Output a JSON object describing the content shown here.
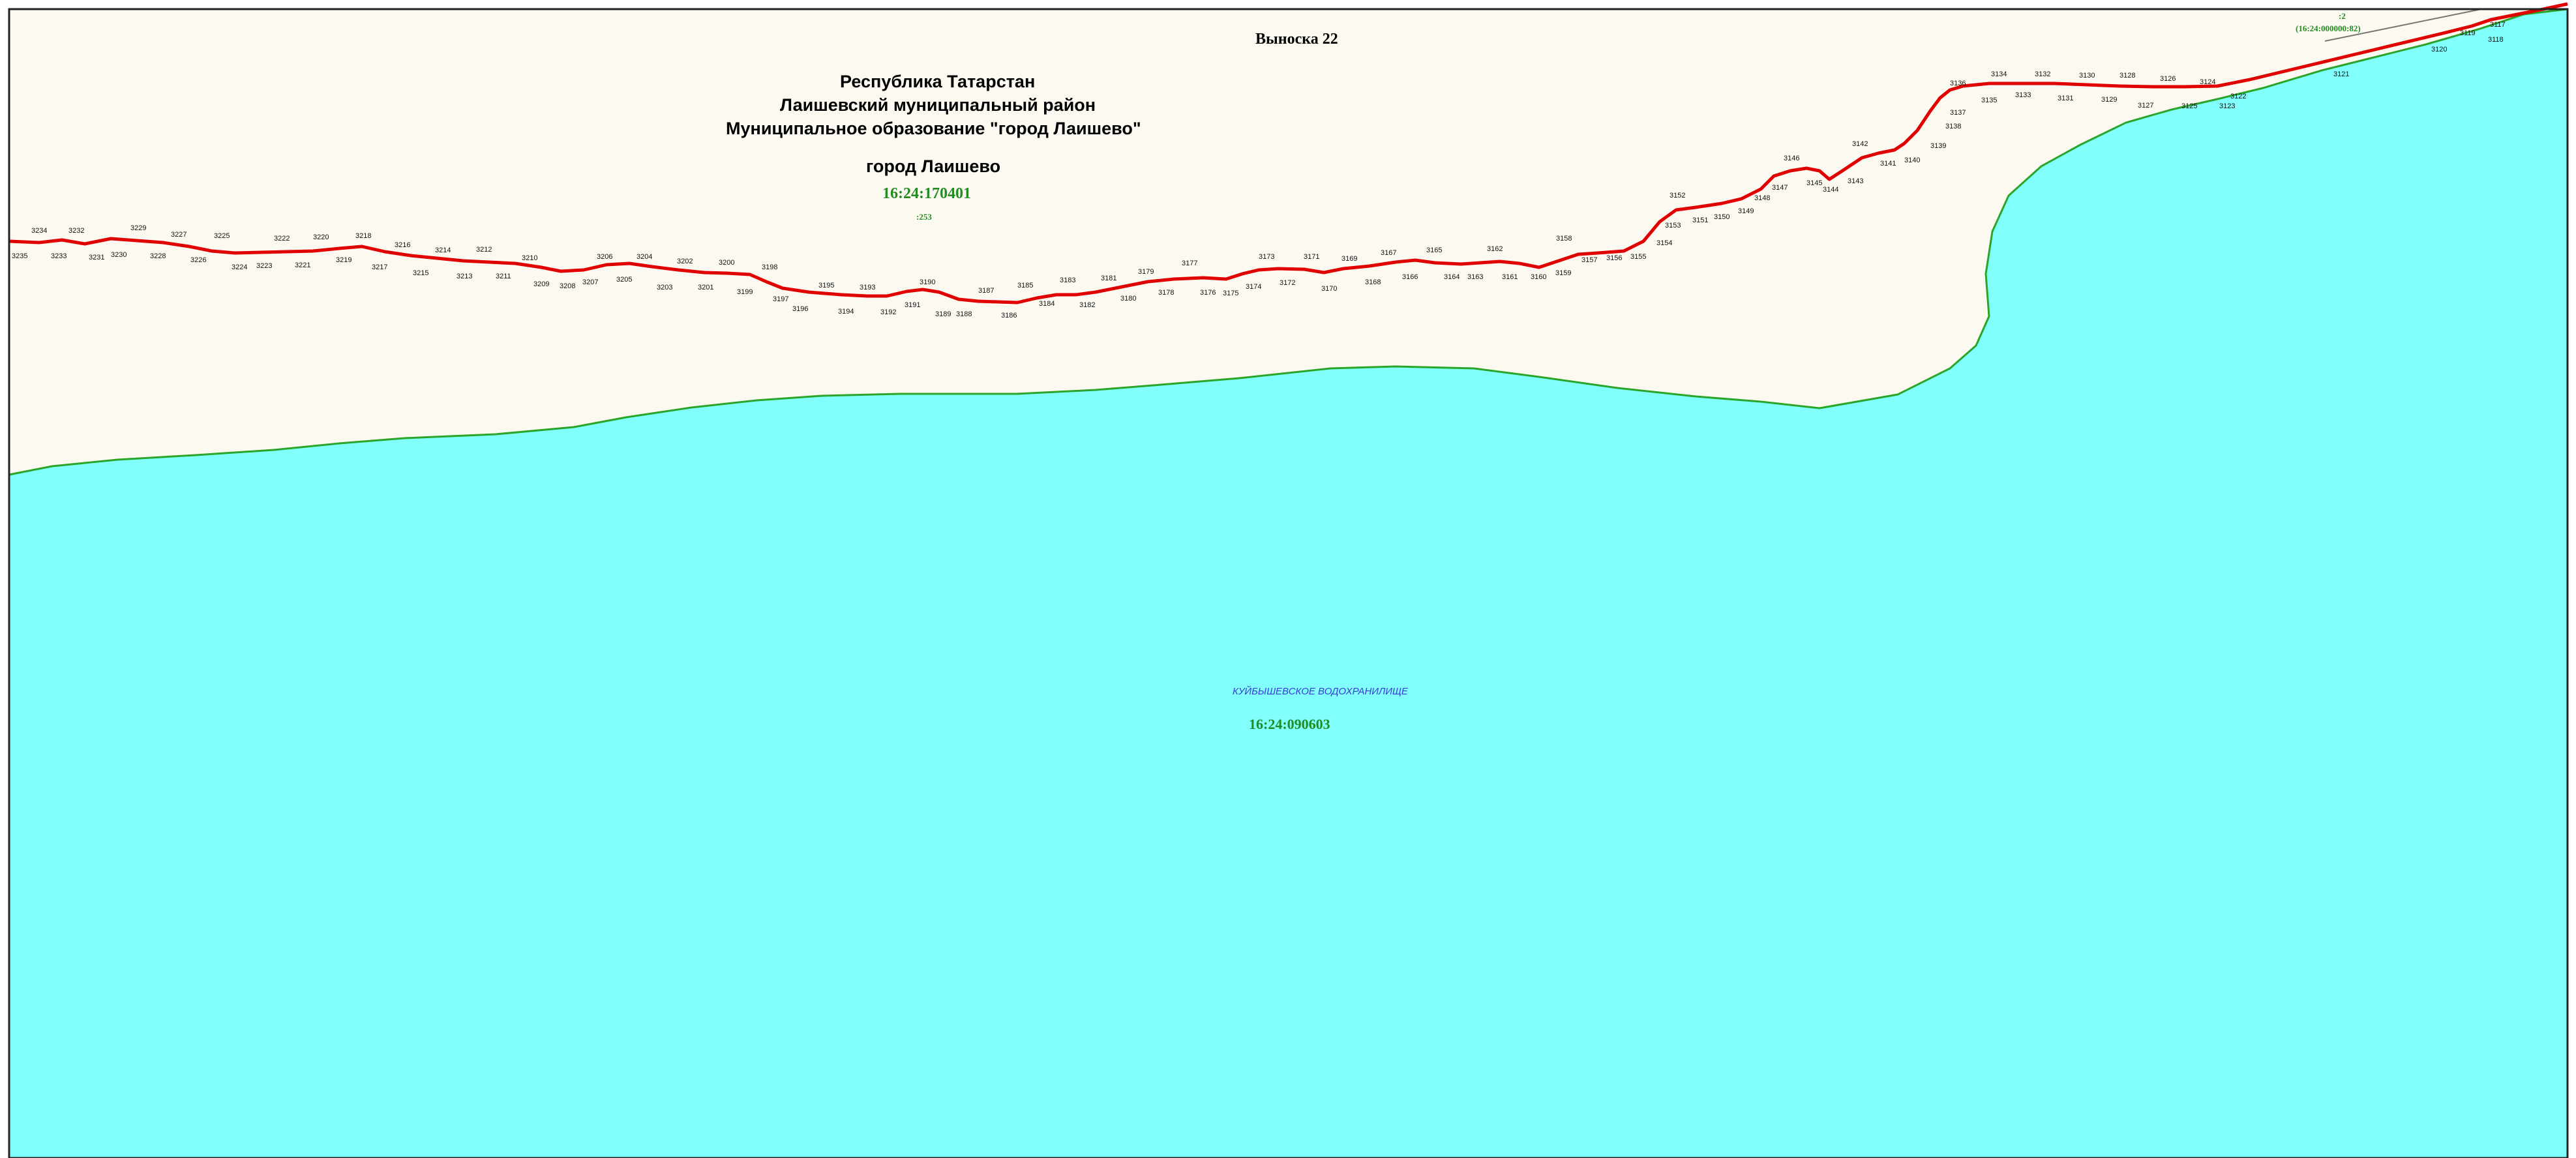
{
  "colors": {
    "land": "#fcfaf0",
    "water": "#80fffd",
    "shoreline": "#2aa52a",
    "boundary": "#e00000",
    "frame": "#222222",
    "cadastral_text": "#238c23",
    "reservoir_text": "#3a3ad8"
  },
  "callout": {
    "title": "Выноска 22"
  },
  "header": {
    "line1": "Республика Татарстан",
    "line2": "Лаишевский муниципальный район",
    "line3": "Муниципальное образование \"город Лаишево\"",
    "city": "город Лаишево",
    "block_number": "16:24:170401",
    "parcel_number": ":253"
  },
  "reservoir": {
    "name": "КУЙБЫШЕВСКОЕ ВОДОХРАНИЛИЩЕ",
    "block_number": "16:24:090603"
  },
  "corner_parcel": {
    "number": ":2",
    "block": "(16:24:000000:82)"
  },
  "points": {
    "p3235": "3235",
    "p3234": "3234",
    "p3233": "3233",
    "p3232": "3232",
    "p3231": "3231",
    "p3230": "3230",
    "p3229": "3229",
    "p3228": "3228",
    "p3227": "3227",
    "p3226": "3226",
    "p3225": "3225",
    "p3224": "3224",
    "p3223": "3223",
    "p3222": "3222",
    "p3221": "3221",
    "p3220": "3220",
    "p3219": "3219",
    "p3218": "3218",
    "p3217": "3217",
    "p3216": "3216",
    "p3215": "3215",
    "p3214": "3214",
    "p3213": "3213",
    "p3212": "3212",
    "p3211": "3211",
    "p3210": "3210",
    "p3209": "3209",
    "p3208": "3208",
    "p3207": "3207",
    "p3206": "3206",
    "p3205": "3205",
    "p3204": "3204",
    "p3203": "3203",
    "p3202": "3202",
    "p3201": "3201",
    "p3200": "3200",
    "p3199": "3199",
    "p3198": "3198",
    "p3197": "3197",
    "p3196": "3196",
    "p3195": "3195",
    "p3194": "3194",
    "p3193": "3193",
    "p3192": "3192",
    "p3191": "3191",
    "p3190": "3190",
    "p3189": "3189",
    "p3188": "3188",
    "p3187": "3187",
    "p3186": "3186",
    "p3185": "3185",
    "p3184": "3184",
    "p3183": "3183",
    "p3182": "3182",
    "p3181": "3181",
    "p3180": "3180",
    "p3179": "3179",
    "p3178": "3178",
    "p3177": "3177",
    "p3176": "3176",
    "p3175": "3175",
    "p3174": "3174",
    "p3173": "3173",
    "p3172": "3172",
    "p3171": "3171",
    "p3170": "3170",
    "p3169": "3169",
    "p3168": "3168",
    "p3167": "3167",
    "p3166": "3166",
    "p3165": "3165",
    "p3164": "3164",
    "p3163": "3163",
    "p3162": "3162",
    "p3161": "3161",
    "p3160": "3160",
    "p3159": "3159",
    "p3158": "3158",
    "p3157": "3157",
    "p3156": "3156",
    "p3155": "3155",
    "p3154": "3154",
    "p3153": "3153",
    "p3152": "3152",
    "p3151": "3151",
    "p3150": "3150",
    "p3149": "3149",
    "p3148": "3148",
    "p3147": "3147",
    "p3146": "3146",
    "p3145": "3145",
    "p3144": "3144",
    "p3143": "3143",
    "p3142": "3142",
    "p3141": "3141",
    "p3140": "3140",
    "p3139": "3139",
    "p3138": "3138",
    "p3137": "3137",
    "p3136": "3136",
    "p3135": "3135",
    "p3134": "3134",
    "p3133": "3133",
    "p3132": "3132",
    "p3131": "3131",
    "p3130": "3130",
    "p3129": "3129",
    "p3128": "3128",
    "p3127": "3127",
    "p3126": "3126",
    "p3125": "3125",
    "p3124": "3124",
    "p3123": "3123",
    "p3122": "3122",
    "p3121": "3121",
    "p3120": "3120",
    "p3119": "3119",
    "p3118": "3118",
    "p3117": "3117"
  }
}
